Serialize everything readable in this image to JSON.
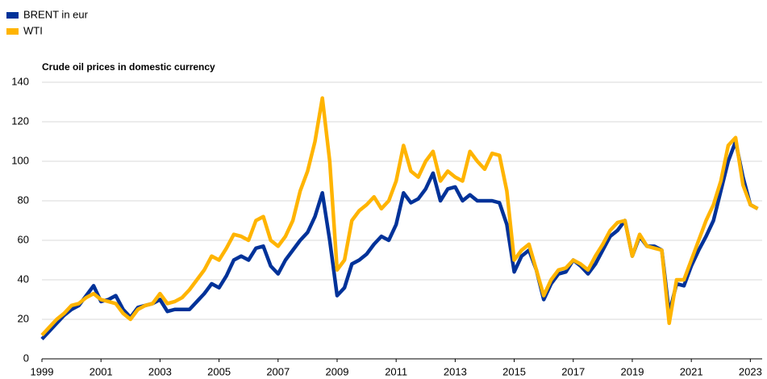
{
  "chart_data": {
    "type": "line",
    "title": "Crude oil prices in domestic currency",
    "x": [
      1999,
      1999.25,
      1999.5,
      1999.75,
      2000,
      2000.25,
      2000.5,
      2000.75,
      2001,
      2001.25,
      2001.5,
      2001.75,
      2002,
      2002.25,
      2002.5,
      2002.75,
      2003,
      2003.25,
      2003.5,
      2003.75,
      2004,
      2004.25,
      2004.5,
      2004.75,
      2005,
      2005.25,
      2005.5,
      2005.75,
      2006,
      2006.25,
      2006.5,
      2006.75,
      2007,
      2007.25,
      2007.5,
      2007.75,
      2008,
      2008.25,
      2008.5,
      2008.75,
      2009,
      2009.25,
      2009.5,
      2009.75,
      2010,
      2010.25,
      2010.5,
      2010.75,
      2011,
      2011.25,
      2011.5,
      2011.75,
      2012,
      2012.25,
      2012.5,
      2012.75,
      2013,
      2013.25,
      2013.5,
      2013.75,
      2014,
      2014.25,
      2014.5,
      2014.75,
      2015,
      2015.25,
      2015.5,
      2015.75,
      2016,
      2016.25,
      2016.5,
      2016.75,
      2017,
      2017.25,
      2017.5,
      2017.75,
      2018,
      2018.25,
      2018.5,
      2018.75,
      2019,
      2019.25,
      2019.5,
      2019.75,
      2020,
      2020.25,
      2020.5,
      2020.75,
      2021,
      2021.25,
      2021.5,
      2021.75,
      2022,
      2022.25,
      2022.5,
      2022.75,
      2023,
      2023.25
    ],
    "series": [
      {
        "name": "BRENT in eur",
        "color": "#003299",
        "values": [
          10,
          14,
          18,
          22,
          25,
          27,
          32,
          37,
          29,
          30,
          32,
          25,
          21,
          26,
          27,
          28,
          30,
          24,
          25,
          25,
          25,
          29,
          33,
          38,
          36,
          42,
          50,
          52,
          50,
          56,
          57,
          47,
          43,
          50,
          55,
          60,
          64,
          72,
          84,
          60,
          32,
          36,
          48,
          50,
          53,
          58,
          62,
          60,
          68,
          84,
          79,
          81,
          86,
          94,
          80,
          86,
          87,
          80,
          83,
          80,
          80,
          80,
          79,
          68,
          44,
          52,
          55,
          45,
          30,
          38,
          43,
          44,
          50,
          47,
          43,
          48,
          55,
          62,
          65,
          70,
          52,
          62,
          57,
          57,
          55,
          23,
          38,
          37,
          47,
          55,
          62,
          70,
          85,
          100,
          110,
          92,
          78,
          76
        ]
      },
      {
        "name": "WTI",
        "color": "#ffb400",
        "values": [
          12,
          16,
          20,
          23,
          27,
          28,
          31,
          33,
          30,
          29,
          28,
          23,
          20,
          25,
          27,
          28,
          33,
          28,
          29,
          31,
          35,
          40,
          45,
          52,
          50,
          56,
          63,
          62,
          60,
          70,
          72,
          60,
          57,
          62,
          70,
          85,
          95,
          110,
          132,
          100,
          45,
          50,
          70,
          75,
          78,
          82,
          76,
          80,
          90,
          108,
          95,
          92,
          100,
          105,
          90,
          95,
          92,
          90,
          105,
          100,
          96,
          104,
          103,
          85,
          50,
          55,
          58,
          45,
          32,
          40,
          45,
          46,
          50,
          48,
          45,
          52,
          58,
          65,
          69,
          70,
          52,
          63,
          57,
          56,
          55,
          18,
          40,
          40,
          50,
          60,
          70,
          78,
          90,
          108,
          112,
          88,
          78,
          76
        ]
      }
    ],
    "xlim": [
      1999,
      2023.4
    ],
    "xticks": [
      1999,
      2001,
      2003,
      2005,
      2007,
      2009,
      2011,
      2013,
      2015,
      2017,
      2019,
      2021,
      2023
    ],
    "ylim": [
      0,
      140
    ],
    "yticks": [
      0,
      20,
      40,
      60,
      80,
      100,
      120,
      140
    ],
    "grid": true
  }
}
